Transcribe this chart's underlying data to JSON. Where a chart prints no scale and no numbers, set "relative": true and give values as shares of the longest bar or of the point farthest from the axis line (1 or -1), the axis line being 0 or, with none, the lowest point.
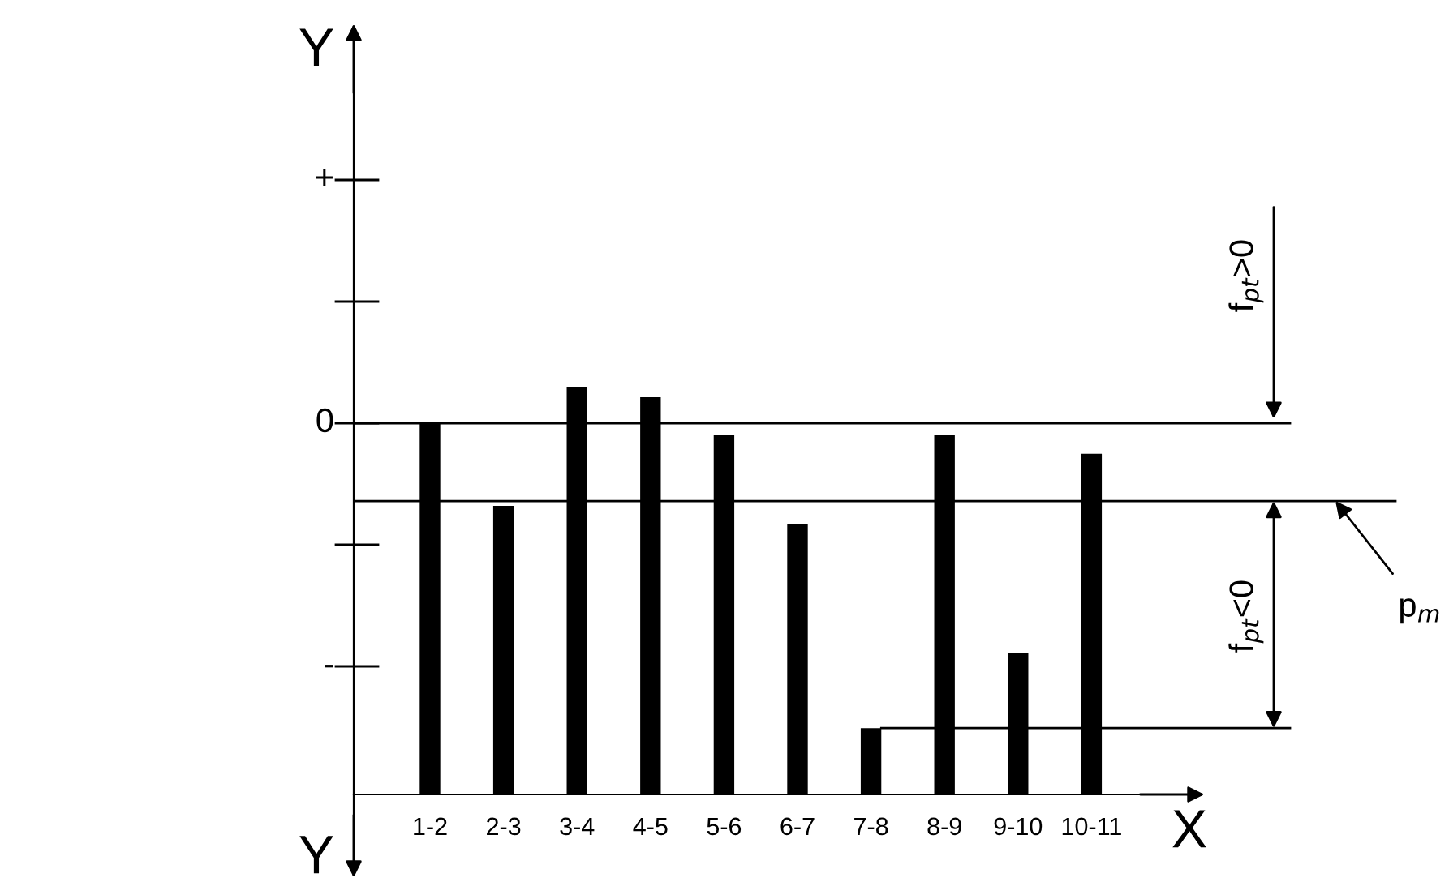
{
  "chart_data": {
    "type": "bar",
    "xlabel": "X",
    "categories": [
      "1-2",
      "2-3",
      "3-4",
      "4-5",
      "5-6",
      "6-7",
      "7-8",
      "8-9",
      "9-10",
      "10-11"
    ],
    "values": [
      0.912,
      0.709,
      1,
      0.976,
      0.884,
      0.665,
      0.163,
      0.884,
      0.347,
      0.837
    ],
    "color": "#000000",
    "relative": true,
    "ref_lines": [
      {
        "axis": "y",
        "value": 0.912,
        "label": "f$_{pt}$>0",
        "color": "#000000"
      },
      {
        "axis": "y",
        "value": 0.721,
        "label": "p$_{m}$",
        "color": "#000000"
      },
      {
        "axis": "y",
        "value": 0.163,
        "label": "f$_{pt}$<0",
        "color": "#000000"
      }
    ],
    "annotations": [
      "+",
      "0",
      "-",
      "Y",
      "Y"
    ],
    "grid": false
  }
}
